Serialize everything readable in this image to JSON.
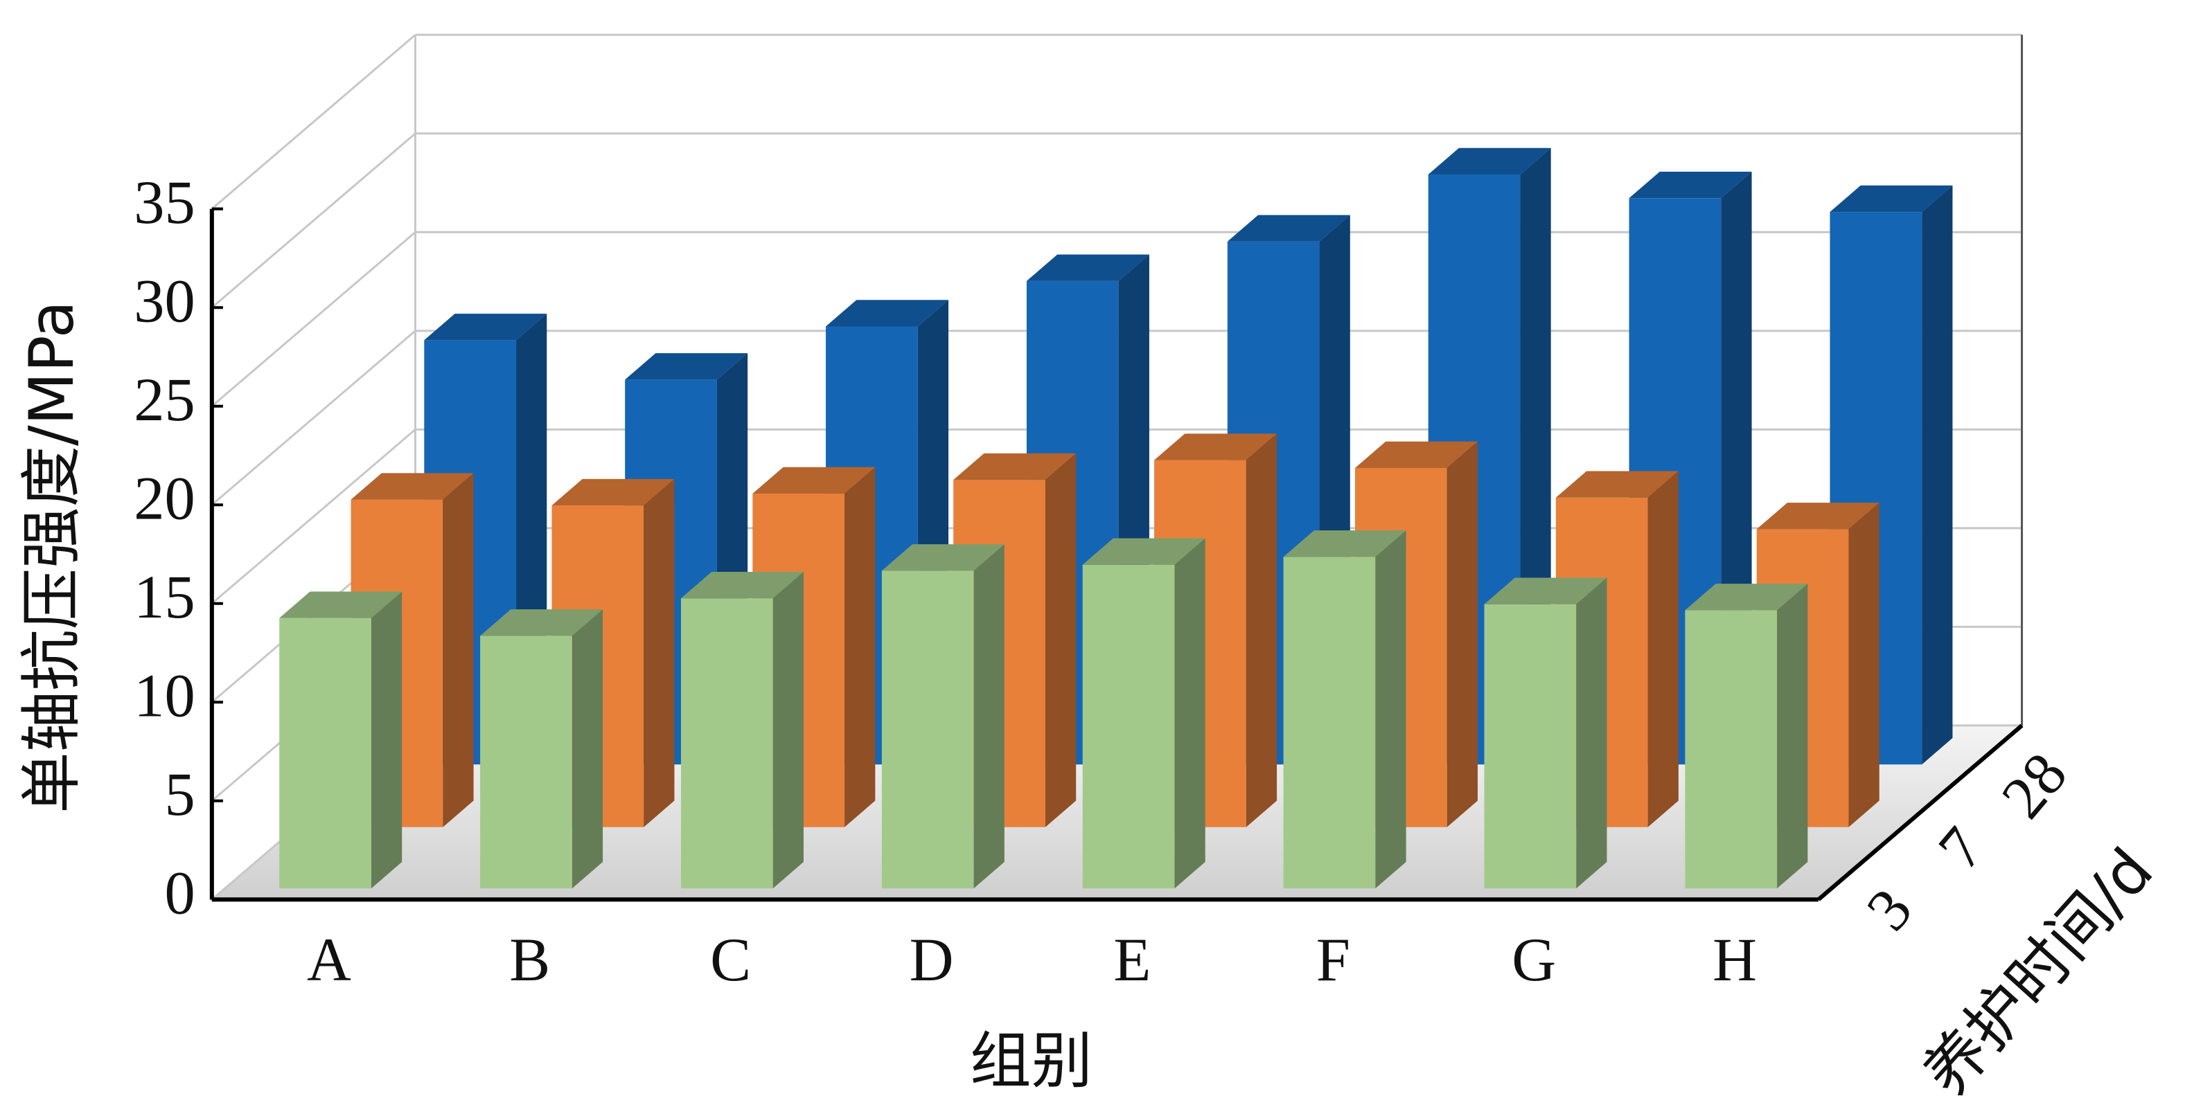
{
  "chart_data": {
    "type": "bar3d",
    "x_label": "组别",
    "y_label": "单轴抗压强度/MPa",
    "z_label": "养护时间/d",
    "categories": [
      "A",
      "B",
      "C",
      "D",
      "E",
      "F",
      "G",
      "H"
    ],
    "series": [
      {
        "name": "3",
        "color": "#a3c98a",
        "values": [
          13.7,
          12.8,
          14.7,
          16.1,
          16.4,
          16.8,
          14.4,
          14.1
        ]
      },
      {
        "name": "7",
        "color": "#e8803a",
        "values": [
          16.6,
          16.3,
          16.9,
          17.6,
          18.6,
          18.2,
          16.7,
          15.1
        ]
      },
      {
        "name": "28",
        "color": "#1565b5",
        "values": [
          21.5,
          19.5,
          22.2,
          24.5,
          26.5,
          29.9,
          28.7,
          28.0
        ]
      }
    ],
    "ylim": [
      0,
      35
    ],
    "yticks": [
      0,
      5,
      10,
      15,
      20,
      25,
      30,
      35
    ],
    "grid": true
  }
}
